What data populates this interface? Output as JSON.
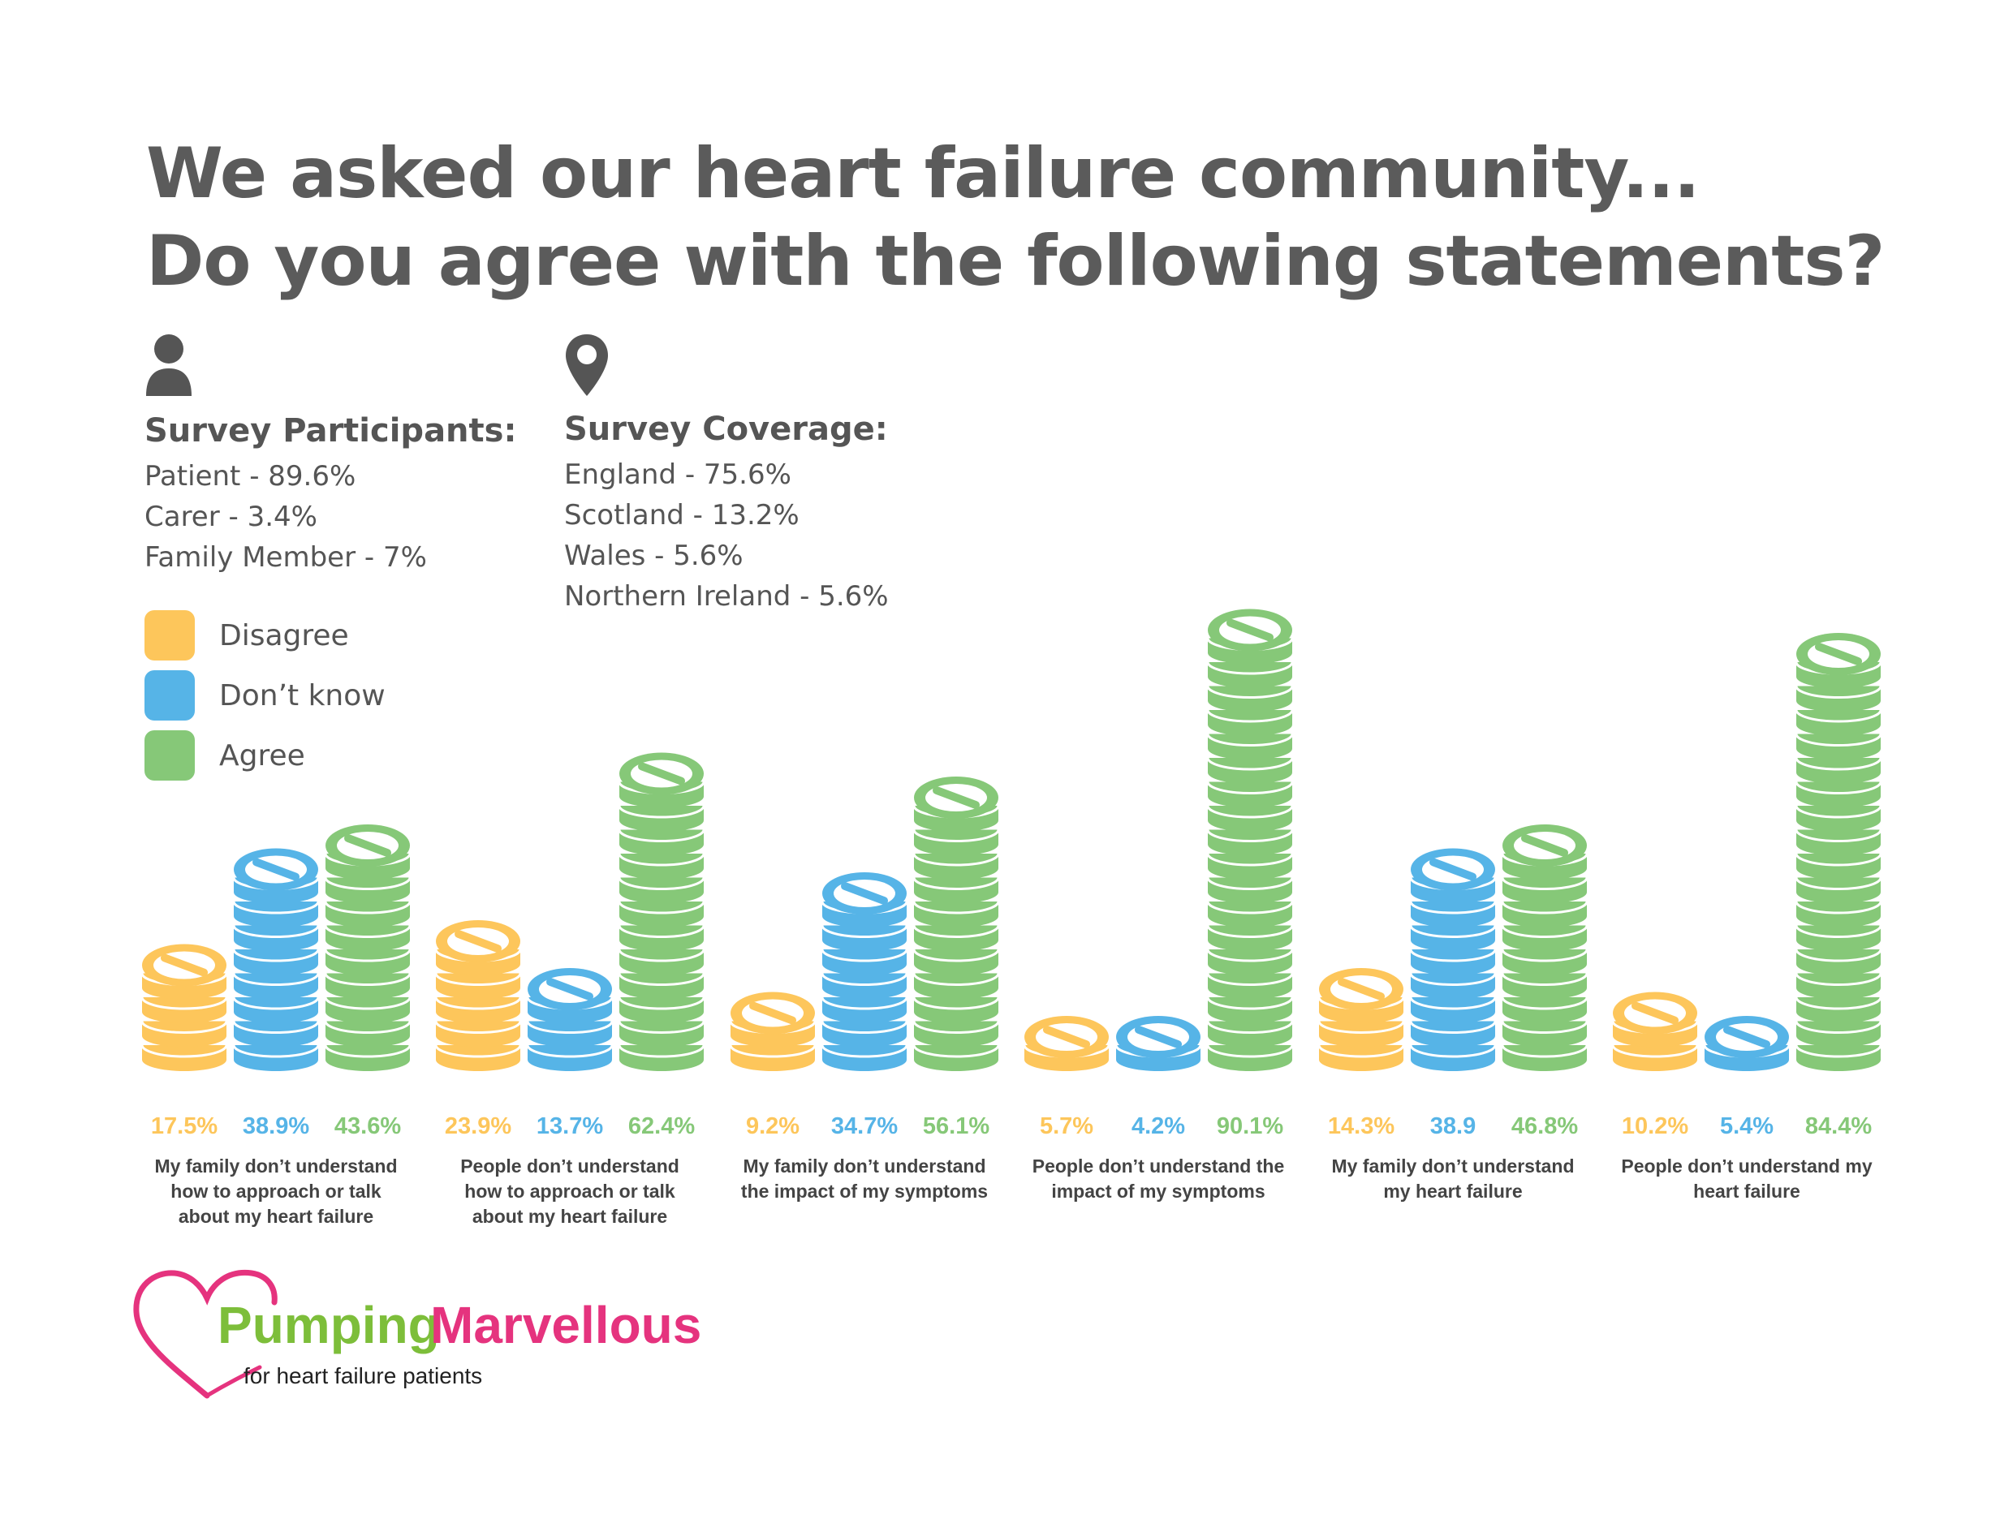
{
  "title": {
    "line1": "We asked our heart failure community...",
    "line2": "Do you agree with the following statements?"
  },
  "participants": {
    "icon": "person-icon",
    "heading": "Survey Participants:",
    "items": [
      "Patient - 89.6%",
      "Carer - 3.4%",
      "Family Member - 7%"
    ]
  },
  "coverage": {
    "icon": "location-pin-icon",
    "heading": "Survey Coverage:",
    "items": [
      "England - 75.6%",
      "Scotland - 13.2%",
      "Wales - 5.6%",
      "Northern Ireland - 5.6%"
    ]
  },
  "legend": {
    "items": [
      {
        "label": "Disagree",
        "color": "#FDC65B"
      },
      {
        "label": "Don’t know",
        "color": "#56B4E7"
      },
      {
        "label": "Agree",
        "color": "#86C878"
      }
    ]
  },
  "chart_data": {
    "type": "bar",
    "categories": [
      "My family don’t understand how to approach or talk about my heart failure",
      "People don’t understand how to approach or talk about my heart failure",
      "My family don’t understand the impact of my symptoms",
      "People don’t understand the impact of my symptoms",
      "My family don’t understand my heart failure",
      "People don’t understand my heart failure"
    ],
    "category_lines": [
      [
        "My family don’t understand",
        "how to approach or talk",
        "about my heart failure"
      ],
      [
        "People don’t understand",
        "how to approach or talk",
        "about my heart failure"
      ],
      [
        "My family don’t understand",
        "the impact of my symptoms"
      ],
      [
        "People don’t understand the",
        "impact of my symptoms"
      ],
      [
        "My family don’t understand",
        "my heart failure"
      ],
      [
        "People don’t understand my",
        "heart failure"
      ]
    ],
    "series": [
      {
        "name": "Disagree",
        "color": "#FDC65B",
        "values": [
          17.5,
          23.9,
          9.2,
          5.7,
          14.3,
          10.2
        ],
        "labels": [
          "17.5%",
          "23.9%",
          "9.2%",
          "5.7%",
          "14.3%",
          "10.2%"
        ]
      },
      {
        "name": "Don’t know",
        "color": "#56B4E7",
        "values": [
          38.9,
          13.7,
          34.7,
          4.2,
          38.9,
          5.4
        ],
        "labels": [
          "38.9%",
          "13.7%",
          "34.7%",
          "4.2%",
          "38.9",
          "5.4%"
        ]
      },
      {
        "name": "Agree",
        "color": "#86C878",
        "values": [
          43.6,
          62.4,
          56.1,
          90.1,
          46.8,
          84.4
        ],
        "labels": [
          "43.6%",
          "62.4%",
          "56.1%",
          "90.1%",
          "46.8%",
          "84.4%"
        ]
      }
    ],
    "mark": "stacked-pill-coins",
    "units_per_coin_percent": 5
  },
  "logo": {
    "word1": "Pumping",
    "word2": "Marvellous",
    "tagline": "for heart failure patients",
    "colors": {
      "green": "#7DBE3A",
      "pink": "#E5337E",
      "dark": "#222222"
    }
  }
}
